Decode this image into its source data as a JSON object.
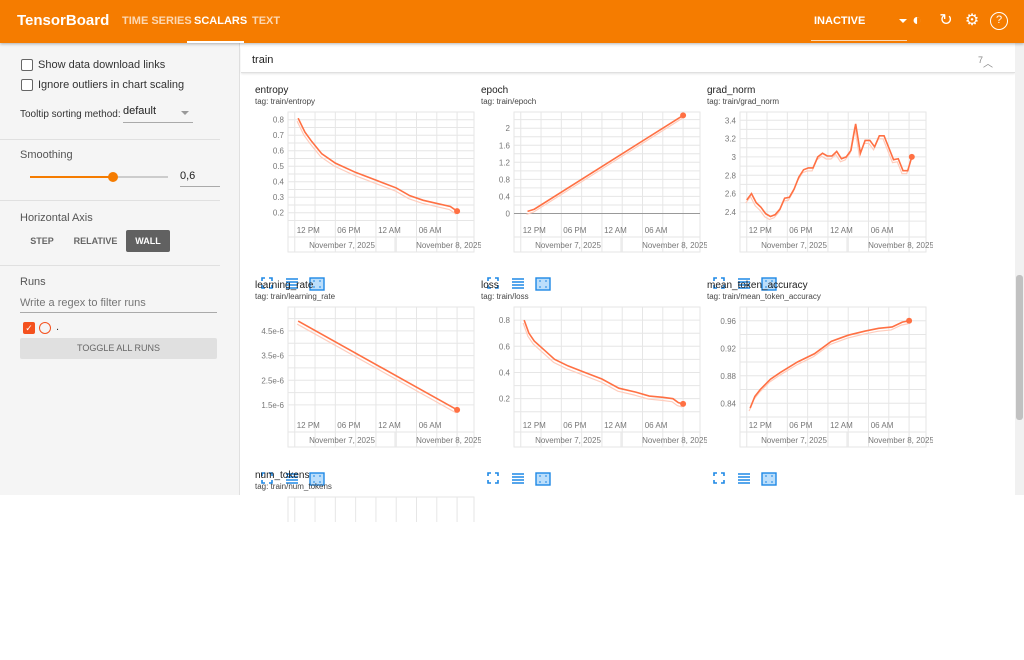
{
  "header": {
    "title": "TensorBoard",
    "tabs": [
      {
        "label": "TIME SERIES"
      },
      {
        "label": "SCALARS"
      },
      {
        "label": "TEXT"
      }
    ],
    "active_tab": "SCALARS",
    "run_selector": "INACTIVE",
    "accent": "#f57c00"
  },
  "sidebar": {
    "show_download": "Show data download links",
    "ignore_outliers": "Ignore outliers in chart scaling",
    "tooltip_label": "Tooltip sorting method:",
    "tooltip_value": "default",
    "smoothing_label": "Smoothing",
    "smoothing_value": 0.6,
    "smoothing_text": "0,6",
    "axis_label": "Horizontal Axis",
    "axis_buttons": [
      "STEP",
      "RELATIVE",
      "WALL"
    ],
    "axis_active": "WALL",
    "runs_label": "Runs",
    "runs_filter_placeholder": "Write a regex to filter runs",
    "run_name": ".",
    "run_color": "#f4511e",
    "toggle_all": "TOGGLE ALL RUNS"
  },
  "section": {
    "name": "train",
    "count": "7"
  },
  "chart_data": [
    {
      "type": "line",
      "title": "entropy",
      "tag": "tag: train/entropy",
      "ylim": [
        0.14,
        0.85
      ],
      "yticks": [
        "0.2",
        "0.3",
        "0.4",
        "0.5",
        "0.6",
        "0.7",
        "0.8"
      ],
      "xlabels": [
        "12 PM",
        "06 PM",
        "12 AM",
        "06 AM"
      ],
      "dates": [
        "November 7, 2025",
        "November 8, 2025"
      ],
      "x": [
        10.5,
        11.5,
        12.5,
        14,
        16,
        19,
        22,
        25,
        27,
        29,
        31,
        33,
        34
      ],
      "values": [
        0.81,
        0.72,
        0.66,
        0.58,
        0.52,
        0.46,
        0.41,
        0.36,
        0.31,
        0.28,
        0.26,
        0.24,
        0.21
      ]
    },
    {
      "type": "line",
      "title": "epoch",
      "tag": "tag: train/epoch",
      "ylim": [
        -0.2,
        2.38
      ],
      "yticks": [
        "0",
        "0.4",
        "0.8",
        "1.2",
        "1.6",
        "2"
      ],
      "xlabels": [
        "12 PM",
        "06 PM",
        "12 AM",
        "06 AM"
      ],
      "dates": [
        "November 7, 2025",
        "November 8, 2025"
      ],
      "x": [
        11,
        12,
        34
      ],
      "values": [
        0.05,
        0.1,
        2.3
      ]
    },
    {
      "type": "line",
      "title": "grad_norm",
      "tag": "tag: train/grad_norm",
      "ylim": [
        2.29,
        3.49
      ],
      "yticks": [
        "2.4",
        "2.6",
        "2.8",
        "3",
        "3.2",
        "3.4"
      ],
      "xlabels": [
        "12 PM",
        "06 PM",
        "12 AM",
        "06 AM"
      ],
      "dates": [
        "November 7, 2025",
        "November 8, 2025"
      ],
      "x": [
        10,
        10.7,
        11.4,
        12.1,
        12.8,
        13.5,
        14.2,
        14.9,
        15.6,
        16.3,
        17,
        17.7,
        18.4,
        19.1,
        19.8,
        20.5,
        21.2,
        21.9,
        22.6,
        23.3,
        24,
        24.7,
        25.4,
        26.1,
        26.8,
        27.5,
        28.2,
        28.9,
        29.6,
        30.3,
        31,
        31.7,
        32.4,
        33.1,
        33.8,
        34.4
      ],
      "values": [
        2.53,
        2.6,
        2.5,
        2.45,
        2.38,
        2.35,
        2.37,
        2.43,
        2.55,
        2.56,
        2.65,
        2.78,
        2.86,
        2.88,
        2.88,
        3.0,
        3.04,
        3.01,
        3.01,
        3.06,
        2.98,
        3.0,
        3.07,
        3.36,
        3.04,
        3.18,
        3.18,
        3.11,
        3.23,
        3.23,
        3.1,
        2.97,
        2.98,
        2.85,
        2.85,
        3.0
      ]
    },
    {
      "type": "line",
      "title": "learning_rate",
      "tag": "tag: train/learning_rate",
      "ylim": [
        1.01e-06,
        5.47e-06
      ],
      "yticks": [
        "1.5e-6",
        "2.5e-6",
        "3.5e-6",
        "4.5e-6"
      ],
      "ytick_values": [
        1.5e-06,
        2.5e-06,
        3.5e-06,
        4.5e-06
      ],
      "xlabels": [
        "12 PM",
        "06 PM",
        "12 AM",
        "06 AM"
      ],
      "dates": [
        "November 7, 2025",
        "November 8, 2025"
      ],
      "x": [
        10.5,
        34
      ],
      "values": [
        4.9e-06,
        1.3e-06
      ]
    },
    {
      "type": "line",
      "title": "loss",
      "tag": "tag: train/loss",
      "ylim": [
        0.06,
        0.9
      ],
      "yticks": [
        "0.2",
        "0.4",
        "0.6",
        "0.8"
      ],
      "xlabels": [
        "12 PM",
        "06 PM",
        "12 AM",
        "06 AM"
      ],
      "dates": [
        "November 7, 2025",
        "November 8, 2025"
      ],
      "x": [
        10.5,
        11.2,
        12,
        13.5,
        15,
        17,
        19.5,
        22,
        24.5,
        27,
        29,
        31,
        32.5,
        33.3,
        34
      ],
      "values": [
        0.8,
        0.7,
        0.64,
        0.57,
        0.5,
        0.45,
        0.4,
        0.35,
        0.28,
        0.25,
        0.22,
        0.21,
        0.2,
        0.17,
        0.16
      ]
    },
    {
      "type": "line",
      "title": "mean_token_accuracy",
      "tag": "tag: train/mean_token_accuracy",
      "ylim": [
        0.82,
        0.98
      ],
      "yticks": [
        "0.84",
        "0.88",
        "0.92",
        "0.96"
      ],
      "xlabels": [
        "12 PM",
        "06 PM",
        "12 AM",
        "06 AM"
      ],
      "dates": [
        "November 7, 2025",
        "November 8, 2025"
      ],
      "x": [
        10.5,
        11.2,
        12,
        13.5,
        15,
        17.5,
        20,
        22.5,
        25,
        27.5,
        29.5,
        31.5,
        33,
        34
      ],
      "values": [
        0.833,
        0.85,
        0.86,
        0.875,
        0.885,
        0.9,
        0.912,
        0.93,
        0.939,
        0.945,
        0.949,
        0.951,
        0.958,
        0.96
      ]
    },
    {
      "type": "line",
      "title": "num_tokens",
      "tag": "tag: train/num_tokens"
    }
  ]
}
